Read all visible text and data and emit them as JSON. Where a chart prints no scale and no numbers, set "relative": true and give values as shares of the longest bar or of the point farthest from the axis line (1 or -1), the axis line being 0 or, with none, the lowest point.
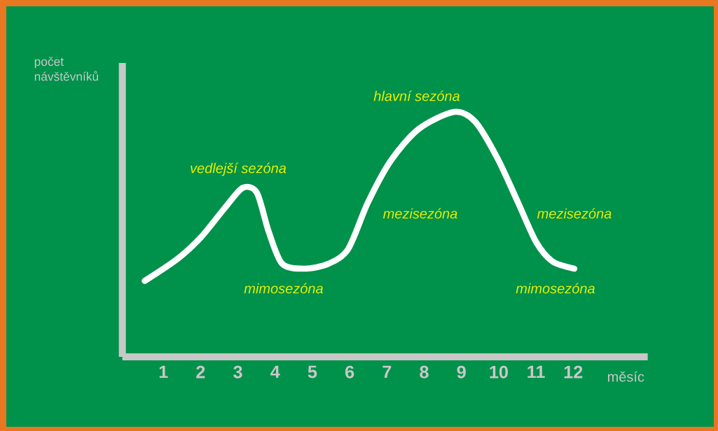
{
  "chart_data": {
    "type": "line",
    "relative": true,
    "xlabel": "měsíc",
    "ylabel": "počet návštěvníků",
    "color": "#ffffff",
    "marker": "none",
    "line_style": "solid",
    "x": [
      0.5,
      1.38,
      2.02,
      2.66,
      3.13,
      3.51,
      3.83,
      4.19,
      4.79,
      5.43,
      5.96,
      6.49,
      7.1,
      7.85,
      8.8,
      9.37,
      9.97,
      10.52,
      11.0,
      11.44,
      12.03
    ],
    "values": [
      0.31,
      0.4,
      0.49,
      0.61,
      0.69,
      0.67,
      0.51,
      0.38,
      0.36,
      0.38,
      0.44,
      0.63,
      0.8,
      0.93,
      1.0,
      0.96,
      0.81,
      0.63,
      0.47,
      0.39,
      0.36
    ],
    "xlim": [
      -0.1,
      14
    ],
    "xticks": [
      1,
      2,
      3,
      4,
      5,
      6,
      7,
      8,
      9,
      10,
      11,
      12
    ],
    "annotations": [
      "vedlejší sezóna",
      "hlavní sezóna",
      "mezisezóna",
      "mezisezóna",
      "mimosezóna",
      "mimosezóna"
    ]
  }
}
